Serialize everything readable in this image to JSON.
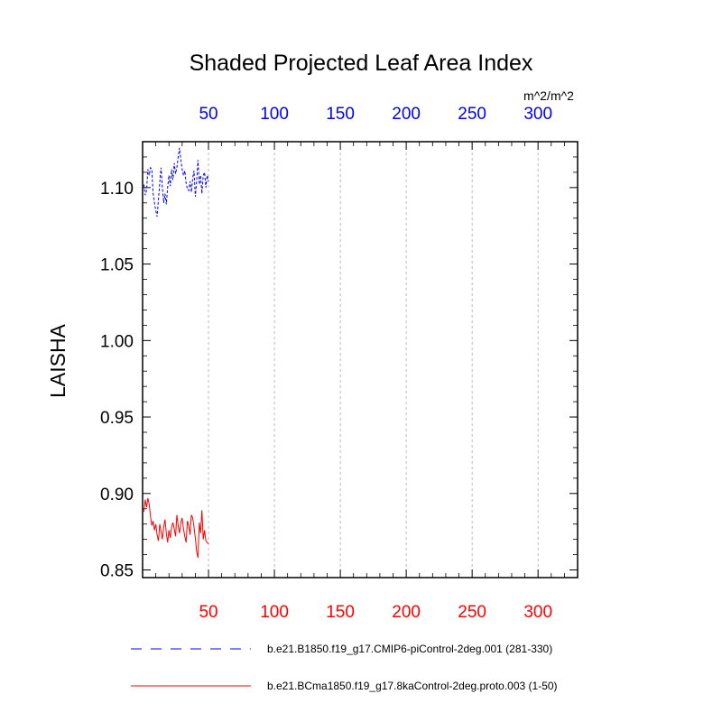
{
  "chart_data": {
    "type": "line",
    "title": "Shaded Projected Leaf Area Index",
    "ylabel": "LAISHA",
    "units": "m^2/m^2",
    "xlim": [
      0,
      330
    ],
    "ylim": [
      0.845,
      1.13
    ],
    "x_ticks": [
      50,
      100,
      150,
      200,
      250,
      300
    ],
    "y_ticks": [
      0.85,
      0.9,
      0.95,
      1.0,
      1.05,
      1.1
    ],
    "y_tick_labels": [
      "0.85",
      "0.90",
      "0.95",
      "1.00",
      "1.05",
      "1.10"
    ],
    "grid": "vertical dashed at x ticks",
    "top_axis_color": "#0000ff",
    "bottom_axis_color": "#ff0000",
    "series": [
      {
        "name": "b.e21.B1850.f19_g17.CMIP6-piControl-2deg.001 (281-330)",
        "color": "#0000ff",
        "dash": "dashed",
        "axis": "top",
        "x": [
          1,
          2,
          3,
          4,
          5,
          6,
          7,
          8,
          9,
          10,
          11,
          12,
          13,
          14,
          15,
          16,
          17,
          18,
          19,
          20,
          21,
          22,
          23,
          24,
          25,
          26,
          27,
          28,
          29,
          30,
          31,
          32,
          33,
          34,
          35,
          36,
          37,
          38,
          39,
          40,
          41,
          42,
          43,
          44,
          45,
          46,
          47,
          48,
          49,
          50
        ],
        "values": [
          1.102,
          1.095,
          1.098,
          1.112,
          1.108,
          1.113,
          1.112,
          1.096,
          1.09,
          1.085,
          1.081,
          1.092,
          1.103,
          1.113,
          1.1,
          1.09,
          1.096,
          1.089,
          1.1,
          1.108,
          1.101,
          1.112,
          1.105,
          1.116,
          1.109,
          1.113,
          1.12,
          1.126,
          1.118,
          1.112,
          1.108,
          1.111,
          1.103,
          1.099,
          1.098,
          1.104,
          1.097,
          1.106,
          1.111,
          1.094,
          1.104,
          1.118,
          1.102,
          1.108,
          1.096,
          1.108,
          1.11,
          1.1,
          1.108,
          1.104
        ]
      },
      {
        "name": "b.e21.BCma1850.f19_g17.8kaControl-2deg.proto.003 (1-50)",
        "color": "#ff0000",
        "dash": "solid",
        "axis": "bottom",
        "x": [
          1,
          2,
          3,
          4,
          5,
          6,
          7,
          8,
          9,
          10,
          11,
          12,
          13,
          14,
          15,
          16,
          17,
          18,
          19,
          20,
          21,
          22,
          23,
          24,
          25,
          26,
          27,
          28,
          29,
          30,
          31,
          32,
          33,
          34,
          35,
          36,
          37,
          38,
          39,
          40,
          41,
          42,
          43,
          44,
          45,
          46,
          47,
          48,
          49,
          50
        ],
        "values": [
          0.888,
          0.896,
          0.891,
          0.897,
          0.893,
          0.885,
          0.879,
          0.882,
          0.876,
          0.88,
          0.873,
          0.869,
          0.88,
          0.875,
          0.87,
          0.878,
          0.883,
          0.874,
          0.868,
          0.876,
          0.871,
          0.878,
          0.881,
          0.877,
          0.872,
          0.886,
          0.879,
          0.874,
          0.881,
          0.884,
          0.877,
          0.872,
          0.868,
          0.882,
          0.879,
          0.873,
          0.886,
          0.884,
          0.878,
          0.871,
          0.862,
          0.858,
          0.881,
          0.874,
          0.889,
          0.87,
          0.876,
          0.869,
          0.868,
          0.867
        ]
      }
    ]
  }
}
